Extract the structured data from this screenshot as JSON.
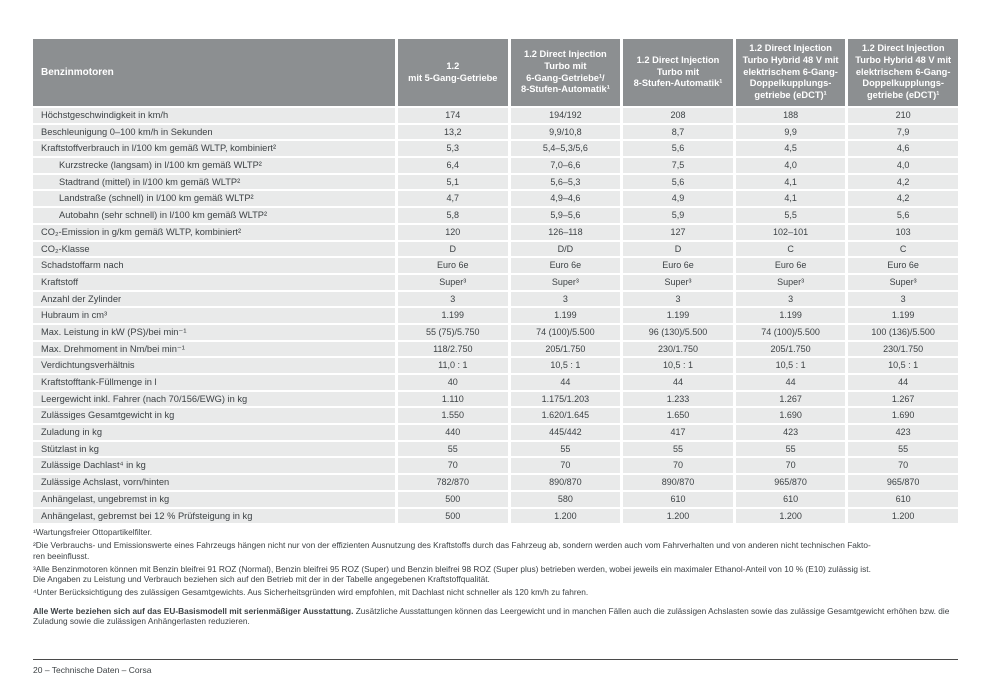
{
  "colors": {
    "header_bg": "#8c8f91",
    "row_bg": "#e9eaea",
    "text": "#3d4245"
  },
  "table": {
    "corner_label": "Benzinmotoren",
    "columns": [
      "1.2\nmit 5-Gang-Getriebe",
      "1.2 Direct Injection\nTurbo mit\n6-Gang-Getriebe¹/\n8-Stufen-Automatik¹",
      "1.2 Direct Injection\nTurbo mit\n8-Stufen-Automatik¹",
      "1.2 Direct Injection\nTurbo Hybrid 48 V mit\nelektrischem 6-Gang-\nDoppelkupplungs-\ngetriebe (eDCT)¹",
      "1.2 Direct Injection\nTurbo Hybrid 48 V mit\nelektrischem 6-Gang-\nDoppelkupplungs-\ngetriebe (eDCT)¹"
    ],
    "rows": [
      {
        "label": "Höchstgeschwindigkeit in km/h",
        "indent": false,
        "values": [
          "174",
          "194/192",
          "208",
          "188",
          "210"
        ]
      },
      {
        "label": "Beschleunigung 0–100 km/h in Sekunden",
        "indent": false,
        "values": [
          "13,2",
          "9,9/10,8",
          "8,7",
          "9,9",
          "7,9"
        ]
      },
      {
        "label": "Kraftstoffverbrauch in l/100 km gemäß WLTP, kombiniert²",
        "indent": false,
        "values": [
          "5,3",
          "5,4–5,3/5,6",
          "5,6",
          "4,5",
          "4,6"
        ]
      },
      {
        "label": "Kurzstrecke (langsam) in l/100 km gemäß WLTP²",
        "indent": true,
        "values": [
          "6,4",
          "7,0–6,6",
          "7,5",
          "4,0",
          "4,0"
        ]
      },
      {
        "label": "Stadtrand (mittel) in l/100 km gemäß WLTP²",
        "indent": true,
        "values": [
          "5,1",
          "5,6–5,3",
          "5,6",
          "4,1",
          "4,2"
        ]
      },
      {
        "label": "Landstraße (schnell) in l/100 km gemäß WLTP²",
        "indent": true,
        "values": [
          "4,7",
          "4,9–4,6",
          "4,9",
          "4,1",
          "4,2"
        ]
      },
      {
        "label": "Autobahn (sehr schnell) in l/100 km gemäß WLTP²",
        "indent": true,
        "values": [
          "5,8",
          "5,9–5,6",
          "5,9",
          "5,5",
          "5,6"
        ]
      },
      {
        "label": "CO₂-Emission in g/km gemäß WLTP, kombiniert²",
        "indent": false,
        "values": [
          "120",
          "126–118",
          "127",
          "102–101",
          "103"
        ]
      },
      {
        "label": "CO₂-Klasse",
        "indent": false,
        "values": [
          "D",
          "D/D",
          "D",
          "C",
          "C"
        ]
      },
      {
        "label": "Schadstoffarm nach",
        "indent": false,
        "values": [
          "Euro 6e",
          "Euro 6e",
          "Euro 6e",
          "Euro 6e",
          "Euro 6e"
        ]
      },
      {
        "label": "Kraftstoff",
        "indent": false,
        "values": [
          "Super³",
          "Super³",
          "Super³",
          "Super³",
          "Super³"
        ]
      },
      {
        "label": "Anzahl der Zylinder",
        "indent": false,
        "values": [
          "3",
          "3",
          "3",
          "3",
          "3"
        ]
      },
      {
        "label": "Hubraum in cm³",
        "indent": false,
        "values": [
          "1.199",
          "1.199",
          "1.199",
          "1.199",
          "1.199"
        ]
      },
      {
        "label": "Max. Leistung in kW (PS)/bei min⁻¹",
        "indent": false,
        "values": [
          "55 (75)/5.750",
          "74 (100)/5.500",
          "96 (130)/5.500",
          "74 (100)/5.500",
          "100 (136)/5.500"
        ]
      },
      {
        "label": "Max. Drehmoment in Nm/bei min⁻¹",
        "indent": false,
        "values": [
          "118/2.750",
          "205/1.750",
          "230/1.750",
          "205/1.750",
          "230/1.750"
        ]
      },
      {
        "label": "Verdichtungsverhältnis",
        "indent": false,
        "values": [
          "11,0 : 1",
          "10,5 : 1",
          "10,5 : 1",
          "10,5 : 1",
          "10,5 : 1"
        ]
      },
      {
        "label": "Kraftstofftank-Füllmenge in l",
        "indent": false,
        "values": [
          "40",
          "44",
          "44",
          "44",
          "44"
        ]
      },
      {
        "label": "Leergewicht inkl. Fahrer (nach 70/156/EWG) in kg",
        "indent": false,
        "values": [
          "1.110",
          "1.175/1.203",
          "1.233",
          "1.267",
          "1.267"
        ]
      },
      {
        "label": "Zulässiges Gesamtgewicht in kg",
        "indent": false,
        "values": [
          "1.550",
          "1.620/1.645",
          "1.650",
          "1.690",
          "1.690"
        ]
      },
      {
        "label": "Zuladung in kg",
        "indent": false,
        "values": [
          "440",
          "445/442",
          "417",
          "423",
          "423"
        ]
      },
      {
        "label": "Stützlast in kg",
        "indent": false,
        "values": [
          "55",
          "55",
          "55",
          "55",
          "55"
        ]
      },
      {
        "label": "Zulässige Dachlast⁴ in kg",
        "indent": false,
        "values": [
          "70",
          "70",
          "70",
          "70",
          "70"
        ]
      },
      {
        "label": "Zulässige Achslast, vorn/hinten",
        "indent": false,
        "values": [
          "782/870",
          "890/870",
          "890/870",
          "965/870",
          "965/870"
        ]
      },
      {
        "label": "Anhängelast, ungebremst in kg",
        "indent": false,
        "values": [
          "500",
          "580",
          "610",
          "610",
          "610"
        ]
      },
      {
        "label": "Anhängelast, gebremst bei 12 % Prüfsteigung in kg",
        "indent": false,
        "values": [
          "500",
          "1.200",
          "1.200",
          "1.200",
          "1.200"
        ]
      }
    ]
  },
  "footnotes": [
    "¹Wartungsfreier Ottopartikelfilter.",
    "²Die Verbrauchs- und Emissionswerte eines Fahrzeugs hängen nicht nur von der effizienten Ausnutzung des Kraftstoffs durch das Fahrzeug ab, sondern werden auch vom Fahrverhalten und von anderen nicht technischen Fakto-\nren beeinflusst.",
    "³Alle Benzinmotoren können mit Benzin bleifrei 91 ROZ (Normal), Benzin bleifrei 95 ROZ (Super) und Benzin bleifrei 98 ROZ (Super plus) betrieben werden, wobei jeweils ein maximaler Ethanol-Anteil von 10 % (E10) zulässig ist.\nDie Angaben zu Leistung und Verbrauch beziehen sich auf den Betrieb mit der in der Tabelle angegebenen Kraftstoffqualität.",
    "⁴Unter Berücksichtigung des zulässigen Gesamtgewichts. Aus Sicherheitsgründen wird empfohlen, mit Dachlast nicht schneller als 120 km/h zu fahren."
  ],
  "final_note": {
    "bold": "Alle Werte beziehen sich auf das EU-Basismodell mit serienmäßiger Ausstattung.",
    "rest": " Zusätzliche Ausstattungen können das Leergewicht und in manchen Fällen auch die zulässigen Achslasten sowie das zulässige Gesamtgewicht erhöhen bzw. die Zuladung sowie die zulässigen Anhängerlasten reduzieren."
  },
  "footer": {
    "text": "20 – Technische Daten – Corsa"
  }
}
